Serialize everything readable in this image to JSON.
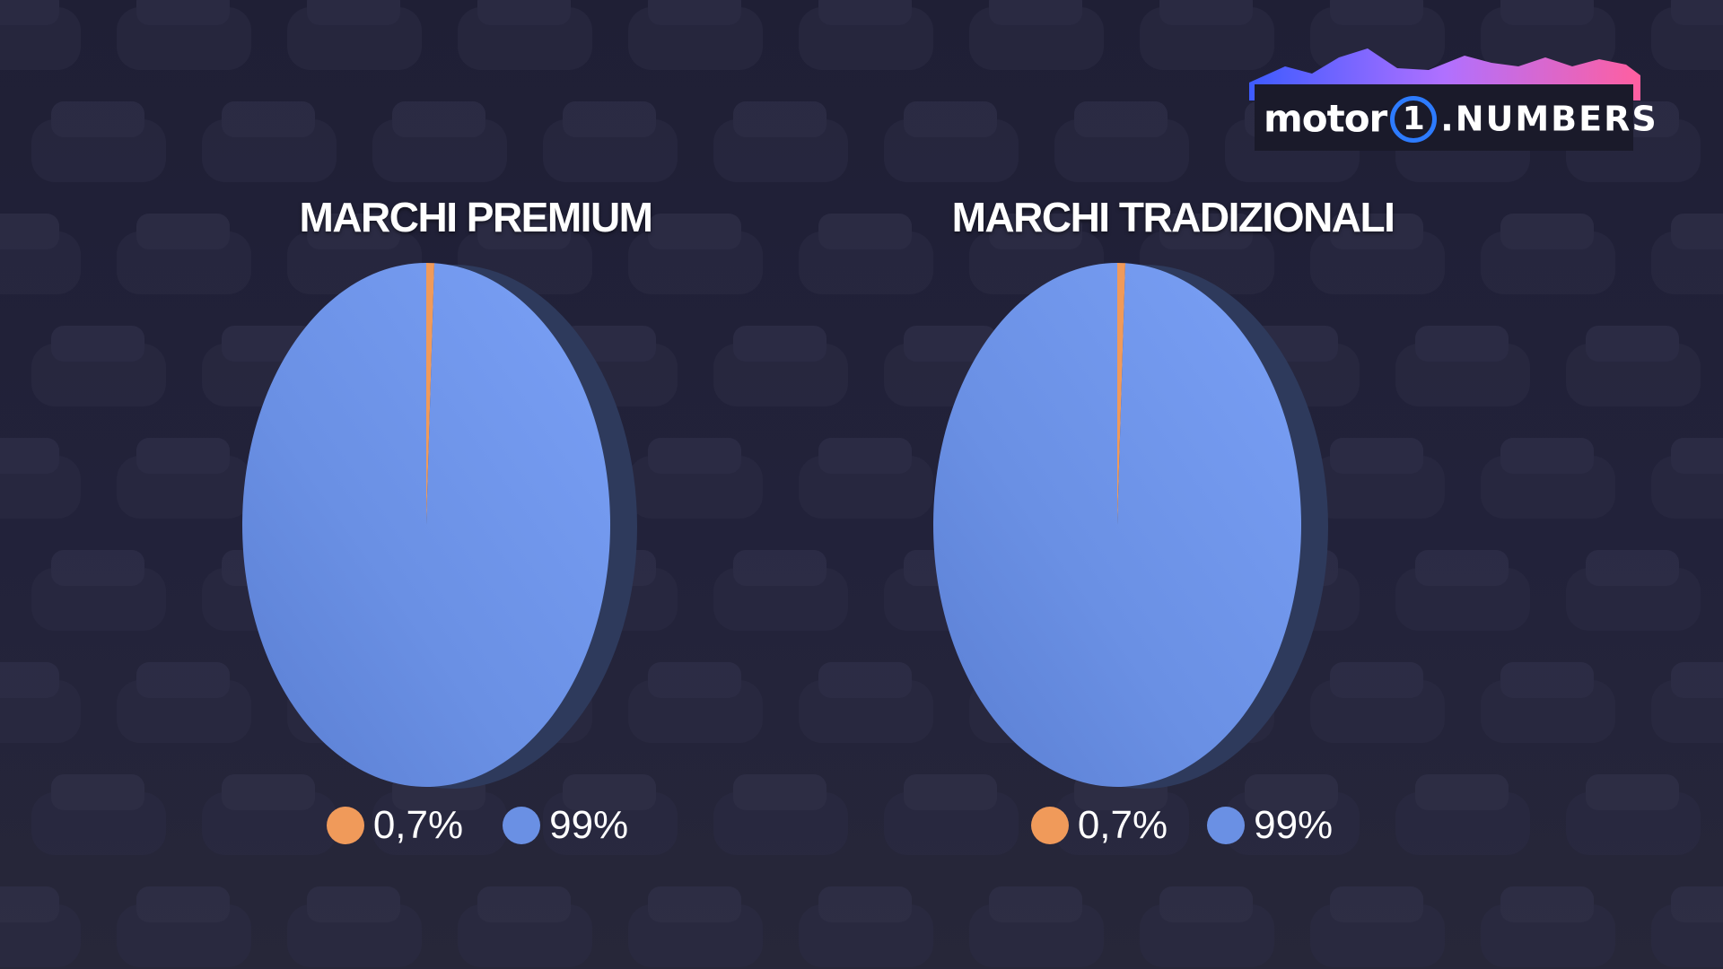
{
  "colors": {
    "slice_small": "#f09a5a",
    "slice_large": "#6a90e4",
    "logo_blue": "#2d7bff"
  },
  "logo": {
    "word_motor": "motor",
    "word_one": "1",
    "word_numbers": ".NUMBERS"
  },
  "chart_data": [
    {
      "type": "pie",
      "title": "MARCHI PREMIUM",
      "values": [
        0.7,
        99.3
      ],
      "slice_labels": [
        "0,7%",
        "99%"
      ],
      "colors": [
        "#f09a5a",
        "#6a90e4"
      ],
      "legend_position": "bottom"
    },
    {
      "type": "pie",
      "title": "MARCHI TRADIZIONALI",
      "values": [
        0.7,
        99.3
      ],
      "slice_labels": [
        "0,7%",
        "99%"
      ],
      "colors": [
        "#f09a5a",
        "#6a90e4"
      ],
      "legend_position": "bottom"
    }
  ]
}
